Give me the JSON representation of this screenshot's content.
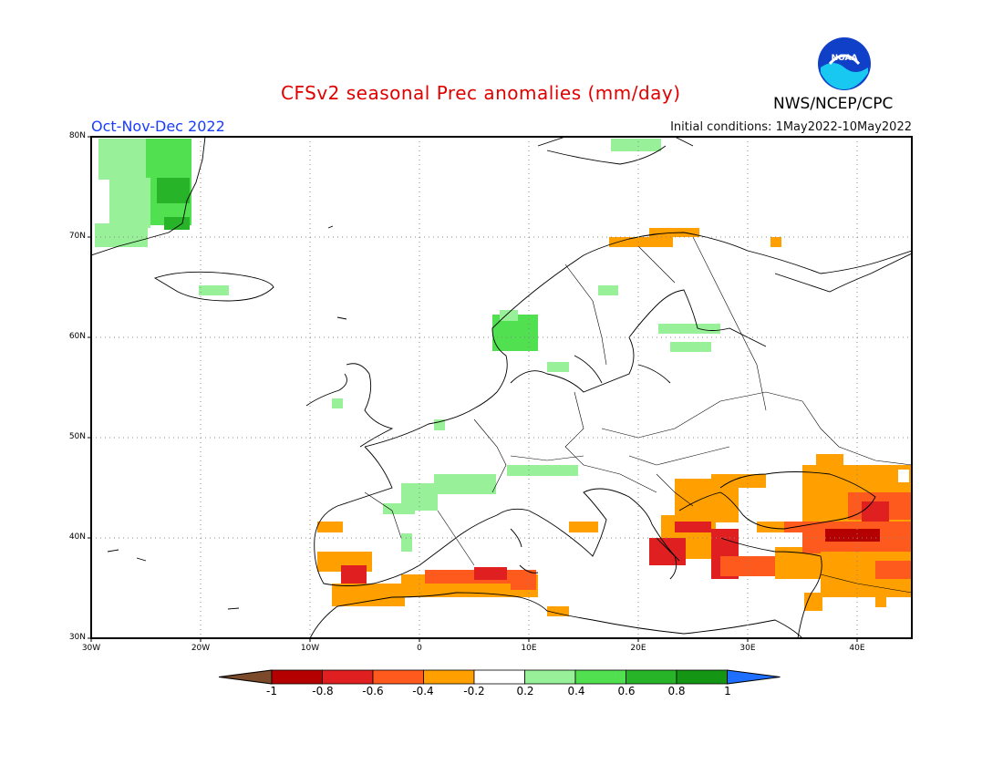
{
  "title": "CFSv2 seasonal Prec anomalies (mm/day)",
  "season": "Oct-Nov-Dec 2022",
  "initial_conditions": "Initial conditions: 1May2022-10May2022",
  "agency": "NWS/NCEP/CPC",
  "logo_text": "NOAA",
  "latitude_labels": [
    "80N",
    "70N",
    "60N",
    "50N",
    "40N",
    "30N"
  ],
  "longitude_labels": [
    "30W",
    "20W",
    "10W",
    "0",
    "10E",
    "20E",
    "30E",
    "40E"
  ],
  "colorbar": {
    "labels": [
      "-1",
      "-0.8",
      "-0.6",
      "-0.4",
      "-0.2",
      "0.2",
      "0.4",
      "0.6",
      "0.8",
      "1"
    ],
    "colors": [
      "#7a4a2a",
      "#b40000",
      "#e02020",
      "#ff5a1e",
      "#ffa000",
      "#ffffff",
      "#98f098",
      "#50e050",
      "#28b428",
      "#149614",
      "#1e6eff"
    ]
  },
  "map_extent": {
    "lon_min": -30,
    "lon_max": 45,
    "lat_min": 30,
    "lat_max": 80
  },
  "anomaly_regions": [
    {
      "name": "Greenland east coast",
      "category": "0.4 to 0.6"
    },
    {
      "name": "Norway west coast",
      "category": "0.4 to 0.6"
    },
    {
      "name": "Western France",
      "category": "0.2 to 0.4"
    },
    {
      "name": "Northern Scandinavia coast",
      "category": "-0.4 to -0.2"
    },
    {
      "name": "Northwest Africa",
      "category": "-0.6 to -0.2"
    },
    {
      "name": "Greece and Aegean",
      "category": "-0.6 to -0.2"
    },
    {
      "name": "Turkey and Black Sea",
      "category": "-0.8 to -0.2"
    }
  ]
}
